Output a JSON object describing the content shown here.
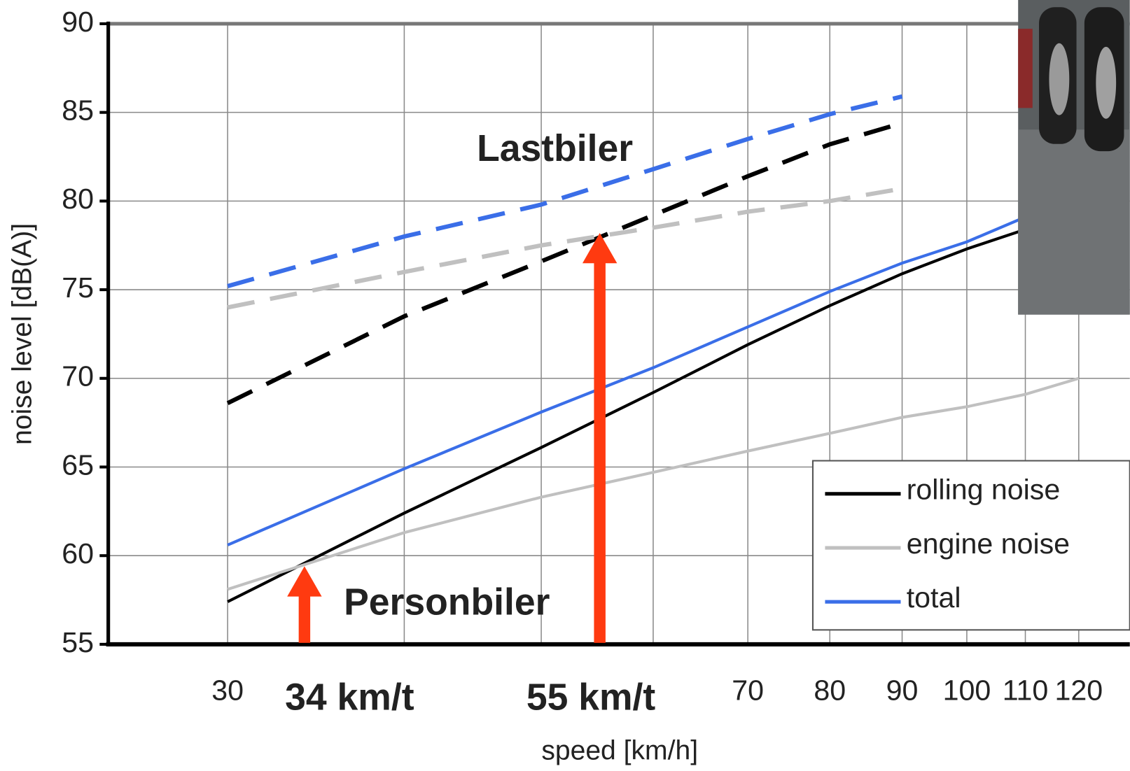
{
  "chart_data": {
    "type": "line",
    "xlabel": "speed [km/h]",
    "ylabel": "noise level [dB(A)]",
    "xscale": "log",
    "xlim": [
      24.7,
      130.4
    ],
    "ylim": [
      55,
      90
    ],
    "xticks": [
      30,
      70,
      80,
      90,
      100,
      110,
      120
    ],
    "xgrid": [
      30,
      40,
      50,
      60,
      70,
      80,
      90,
      100,
      110,
      120
    ],
    "yticks": [
      55,
      60,
      65,
      70,
      75,
      80,
      85,
      90
    ],
    "grid": true,
    "legend": "lower right",
    "series": [
      {
        "name": "rolling noise",
        "color": "#000000",
        "dash": false,
        "x": [
          30,
          40,
          50,
          60,
          70,
          80,
          90,
          100,
          110
        ],
        "values": [
          57.4,
          62.4,
          66.1,
          69.2,
          71.9,
          74.1,
          75.9,
          77.3,
          78.4
        ]
      },
      {
        "name": "engine noise",
        "color": "#c0c0c0",
        "dash": false,
        "x": [
          30,
          40,
          50,
          60,
          70,
          80,
          90,
          100,
          110,
          120
        ],
        "values": [
          58.1,
          61.3,
          63.3,
          64.7,
          65.9,
          66.9,
          67.8,
          68.4,
          69.1,
          70.0
        ]
      },
      {
        "name": "total",
        "color": "#3a6ee8",
        "dash": false,
        "x": [
          30,
          40,
          50,
          60,
          70,
          80,
          90,
          100,
          110
        ],
        "values": [
          60.6,
          64.9,
          68.1,
          70.6,
          72.9,
          74.9,
          76.5,
          77.7,
          79.1
        ]
      },
      {
        "color": "#000000",
        "dash": true,
        "x": [
          30,
          40,
          50,
          60,
          70,
          80,
          90
        ],
        "values": [
          68.6,
          73.5,
          76.6,
          79.2,
          81.4,
          83.2,
          84.4
        ]
      },
      {
        "color": "#c0c0c0",
        "dash": true,
        "x": [
          30,
          40,
          50,
          60,
          70,
          80,
          90
        ],
        "values": [
          74.0,
          76.0,
          77.5,
          78.5,
          79.4,
          80.0,
          80.7
        ]
      },
      {
        "color": "#3a6ee8",
        "dash": true,
        "x": [
          30,
          40,
          50,
          60,
          70,
          80,
          90
        ],
        "values": [
          75.2,
          78.0,
          79.8,
          81.8,
          83.5,
          84.9,
          85.9
        ]
      }
    ],
    "arrows": [
      {
        "text": "34 km/t",
        "x": 34,
        "y": 59.4
      },
      {
        "text": "55 km/t",
        "x": 55,
        "y": 78.2
      }
    ],
    "arrow_color": "#ff3a10",
    "labels": [
      "Lastbiler",
      "Personbiler"
    ]
  }
}
